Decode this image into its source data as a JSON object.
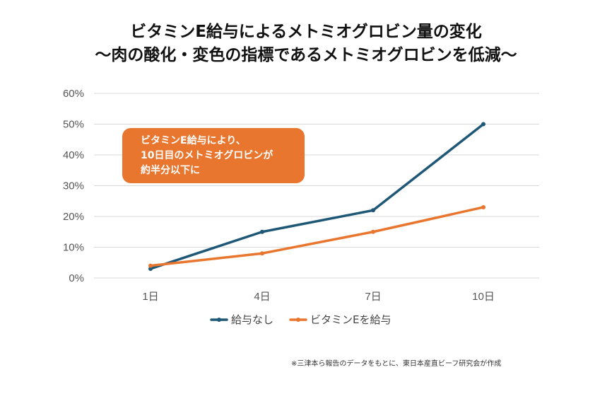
{
  "title": {
    "line1": "ビタミンE給与によるメトミオグロビン量の変化",
    "line2": "〜肉の酸化・変色の指標であるメトミオグロビンを低減〜"
  },
  "callout": {
    "line1": "ビタミンE給与により、",
    "line2": "10日目のメトミオグロビンが",
    "line3": "約半分以下に"
  },
  "footnote": "※三津本ら報告のデータをもとに、東日本産直ビーフ研究会が作成",
  "colors": {
    "series1": "#1f5777",
    "series2": "#e8762f",
    "grid": "#d9d9d9",
    "callout": "#e8762f"
  },
  "chart_data": {
    "type": "line",
    "title": "ビタミンE給与によるメトミオグロビン量の変化",
    "categories": [
      "1日",
      "4日",
      "7日",
      "10日"
    ],
    "series": [
      {
        "name": "給与なし",
        "values": [
          3,
          15,
          22,
          50
        ]
      },
      {
        "name": "ビタミンEを給与",
        "values": [
          4,
          8,
          15,
          23
        ]
      }
    ],
    "yticks": [
      "0%",
      "10%",
      "20%",
      "30%",
      "40%",
      "50%",
      "60%"
    ],
    "ylim": [
      0,
      60
    ],
    "xlabel": "",
    "ylabel": "",
    "grid": true,
    "legend": "bottom"
  }
}
